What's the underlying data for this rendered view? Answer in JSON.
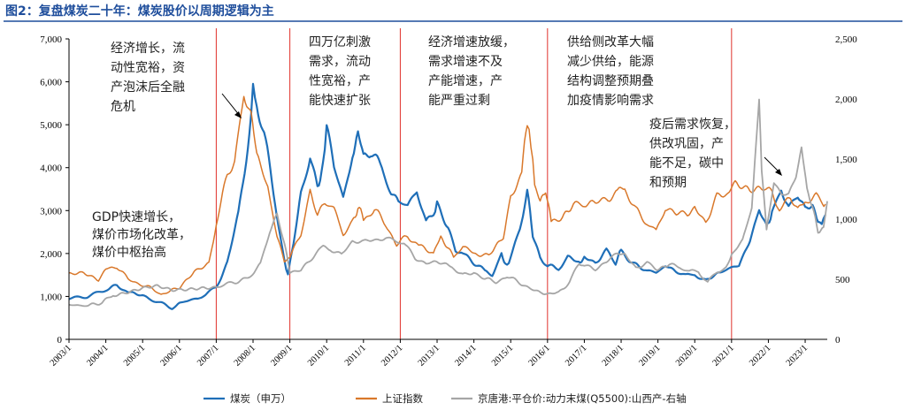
{
  "chart_data": {
    "type": "line",
    "title": "图2：复盘煤炭二十年：煤炭股价以周期逻辑为主",
    "x_categories": [
      "2003/1",
      "2004/1",
      "2005/1",
      "2006/1",
      "2007/1",
      "2008/1",
      "2009/1",
      "2010/1",
      "2011/1",
      "2012/1",
      "2013/1",
      "2014/1",
      "2015/1",
      "2016/1",
      "2017/1",
      "2018/1",
      "2019/1",
      "2020/1",
      "2021/1",
      "2022/1",
      "2023/1"
    ],
    "y_left": {
      "ticks": [
        "0",
        "1,000",
        "2,000",
        "3,000",
        "4,000",
        "5,000",
        "6,000",
        "7,000"
      ],
      "ylim": [
        0,
        7000
      ]
    },
    "y_right": {
      "ticks": [
        "0",
        "500",
        "1,000",
        "1,500",
        "2,000",
        "2,500"
      ],
      "ylim": [
        0,
        2500
      ]
    },
    "series": [
      {
        "name": "煤炭（申万）",
        "axis": "left",
        "color": "#1f6fb8",
        "points": [
          [
            2003.0,
            950
          ],
          [
            2003.5,
            1000
          ],
          [
            2004.0,
            1150
          ],
          [
            2004.3,
            1250
          ],
          [
            2004.6,
            1100
          ],
          [
            2005.0,
            1000
          ],
          [
            2005.5,
            850
          ],
          [
            2005.8,
            720
          ],
          [
            2006.0,
            850
          ],
          [
            2006.5,
            950
          ],
          [
            2007.0,
            1200
          ],
          [
            2007.3,
            1800
          ],
          [
            2007.6,
            2900
          ],
          [
            2007.9,
            4800
          ],
          [
            2008.0,
            6000
          ],
          [
            2008.1,
            5400
          ],
          [
            2008.3,
            4800
          ],
          [
            2008.6,
            3200
          ],
          [
            2008.85,
            1800
          ],
          [
            2008.95,
            1500
          ],
          [
            2009.1,
            2300
          ],
          [
            2009.3,
            3400
          ],
          [
            2009.55,
            4300
          ],
          [
            2009.75,
            3600
          ],
          [
            2009.9,
            4000
          ],
          [
            2010.0,
            4900
          ],
          [
            2010.2,
            4000
          ],
          [
            2010.45,
            3300
          ],
          [
            2010.7,
            4300
          ],
          [
            2010.85,
            4800
          ],
          [
            2011.0,
            4300
          ],
          [
            2011.2,
            4400
          ],
          [
            2011.5,
            4000
          ],
          [
            2011.75,
            3400
          ],
          [
            2011.95,
            3200
          ],
          [
            2012.2,
            3100
          ],
          [
            2012.45,
            3500
          ],
          [
            2012.7,
            2700
          ],
          [
            2012.9,
            2900
          ],
          [
            2013.0,
            3200
          ],
          [
            2013.3,
            2600
          ],
          [
            2013.5,
            2100
          ],
          [
            2013.7,
            2000
          ],
          [
            2014.0,
            1800
          ],
          [
            2014.3,
            1600
          ],
          [
            2014.5,
            1500
          ],
          [
            2014.75,
            2000
          ],
          [
            2014.9,
            1700
          ],
          [
            2015.0,
            1900
          ],
          [
            2015.25,
            2600
          ],
          [
            2015.45,
            3500
          ],
          [
            2015.6,
            2400
          ],
          [
            2015.8,
            1900
          ],
          [
            2016.0,
            1700
          ],
          [
            2016.3,
            1650
          ],
          [
            2016.55,
            1900
          ],
          [
            2016.85,
            1800
          ],
          [
            2017.0,
            1900
          ],
          [
            2017.3,
            1800
          ],
          [
            2017.6,
            2050
          ],
          [
            2017.85,
            1800
          ],
          [
            2018.0,
            2050
          ],
          [
            2018.3,
            1800
          ],
          [
            2018.7,
            1600
          ],
          [
            2018.95,
            1550
          ],
          [
            2019.2,
            1700
          ],
          [
            2019.5,
            1600
          ],
          [
            2019.75,
            1500
          ],
          [
            2020.0,
            1500
          ],
          [
            2020.3,
            1350
          ],
          [
            2020.7,
            1550
          ],
          [
            2020.95,
            1650
          ],
          [
            2021.2,
            1750
          ],
          [
            2021.5,
            2300
          ],
          [
            2021.75,
            3000
          ],
          [
            2021.95,
            2600
          ],
          [
            2022.1,
            3000
          ],
          [
            2022.35,
            3500
          ],
          [
            2022.55,
            3100
          ],
          [
            2022.8,
            3300
          ],
          [
            2023.0,
            3000
          ],
          [
            2023.2,
            3100
          ],
          [
            2023.35,
            2800
          ],
          [
            2023.45,
            2700
          ],
          [
            2023.55,
            2900
          ]
        ]
      },
      {
        "name": "上证指数",
        "axis": "left",
        "color": "#d9782b",
        "points": [
          [
            2003.0,
            1500
          ],
          [
            2003.4,
            1550
          ],
          [
            2003.8,
            1400
          ],
          [
            2004.0,
            1650
          ],
          [
            2004.3,
            1700
          ],
          [
            2004.6,
            1400
          ],
          [
            2004.9,
            1300
          ],
          [
            2005.2,
            1200
          ],
          [
            2005.5,
            1050
          ],
          [
            2005.8,
            1150
          ],
          [
            2006.0,
            1200
          ],
          [
            2006.4,
            1600
          ],
          [
            2006.8,
            1800
          ],
          [
            2007.0,
            2700
          ],
          [
            2007.3,
            3800
          ],
          [
            2007.5,
            4100
          ],
          [
            2007.75,
            5800
          ],
          [
            2007.95,
            5300
          ],
          [
            2008.1,
            4300
          ],
          [
            2008.4,
            3500
          ],
          [
            2008.65,
            2400
          ],
          [
            2008.85,
            1800
          ],
          [
            2009.0,
            1900
          ],
          [
            2009.3,
            2500
          ],
          [
            2009.55,
            3400
          ],
          [
            2009.75,
            2900
          ],
          [
            2009.95,
            3200
          ],
          [
            2010.2,
            3000
          ],
          [
            2010.45,
            2500
          ],
          [
            2010.7,
            2700
          ],
          [
            2010.85,
            3100
          ],
          [
            2011.0,
            2800
          ],
          [
            2011.3,
            3000
          ],
          [
            2011.6,
            2700
          ],
          [
            2011.9,
            2200
          ],
          [
            2012.2,
            2400
          ],
          [
            2012.5,
            2200
          ],
          [
            2012.9,
            1950
          ],
          [
            2013.1,
            2400
          ],
          [
            2013.45,
            1900
          ],
          [
            2013.7,
            2200
          ],
          [
            2014.0,
            2000
          ],
          [
            2014.4,
            2000
          ],
          [
            2014.8,
            2400
          ],
          [
            2015.0,
            3300
          ],
          [
            2015.3,
            3900
          ],
          [
            2015.45,
            5100
          ],
          [
            2015.55,
            4500
          ],
          [
            2015.65,
            3600
          ],
          [
            2015.8,
            3200
          ],
          [
            2015.95,
            3500
          ],
          [
            2016.1,
            2700
          ],
          [
            2016.4,
            2900
          ],
          [
            2016.75,
            3100
          ],
          [
            2017.0,
            3200
          ],
          [
            2017.3,
            3150
          ],
          [
            2017.6,
            3300
          ],
          [
            2017.9,
            3400
          ],
          [
            2018.1,
            3500
          ],
          [
            2018.4,
            3000
          ],
          [
            2018.7,
            2700
          ],
          [
            2018.95,
            2500
          ],
          [
            2019.2,
            3100
          ],
          [
            2019.5,
            2900
          ],
          [
            2019.8,
            2950
          ],
          [
            2020.0,
            3050
          ],
          [
            2020.3,
            2750
          ],
          [
            2020.6,
            3300
          ],
          [
            2020.9,
            3400
          ],
          [
            2021.1,
            3600
          ],
          [
            2021.5,
            3500
          ],
          [
            2021.9,
            3600
          ],
          [
            2022.1,
            3500
          ],
          [
            2022.3,
            3000
          ],
          [
            2022.6,
            3300
          ],
          [
            2022.8,
            3000
          ],
          [
            2023.0,
            3200
          ],
          [
            2023.3,
            3300
          ],
          [
            2023.55,
            3150
          ]
        ]
      },
      {
        "name": "京唐港:平仓价:动力末煤(Q5500):山西产-右轴",
        "axis": "right",
        "color": "#a6a6a6",
        "points": [
          [
            2003.0,
            290
          ],
          [
            2003.5,
            280
          ],
          [
            2003.9,
            300
          ],
          [
            2004.2,
            370
          ],
          [
            2004.6,
            400
          ],
          [
            2005.0,
            430
          ],
          [
            2005.4,
            440
          ],
          [
            2005.8,
            400
          ],
          [
            2006.2,
            410
          ],
          [
            2006.6,
            430
          ],
          [
            2007.0,
            440
          ],
          [
            2007.5,
            470
          ],
          [
            2007.9,
            520
          ],
          [
            2008.2,
            620
          ],
          [
            2008.45,
            900
          ],
          [
            2008.65,
            1050
          ],
          [
            2008.85,
            800
          ],
          [
            2009.0,
            560
          ],
          [
            2009.3,
            570
          ],
          [
            2009.6,
            680
          ],
          [
            2009.9,
            780
          ],
          [
            2010.1,
            750
          ],
          [
            2010.4,
            700
          ],
          [
            2010.7,
            820
          ],
          [
            2011.0,
            810
          ],
          [
            2011.3,
            830
          ],
          [
            2011.6,
            840
          ],
          [
            2011.85,
            820
          ],
          [
            2012.1,
            800
          ],
          [
            2012.4,
            680
          ],
          [
            2012.7,
            630
          ],
          [
            2013.0,
            640
          ],
          [
            2013.4,
            600
          ],
          [
            2013.7,
            530
          ],
          [
            2014.0,
            560
          ],
          [
            2014.3,
            500
          ],
          [
            2014.6,
            480
          ],
          [
            2014.9,
            520
          ],
          [
            2015.2,
            480
          ],
          [
            2015.5,
            430
          ],
          [
            2015.8,
            380
          ],
          [
            2016.0,
            370
          ],
          [
            2016.3,
            390
          ],
          [
            2016.6,
            480
          ],
          [
            2016.85,
            620
          ],
          [
            2017.0,
            610
          ],
          [
            2017.3,
            590
          ],
          [
            2017.6,
            640
          ],
          [
            2017.9,
            720
          ],
          [
            2018.1,
            700
          ],
          [
            2018.4,
            600
          ],
          [
            2018.7,
            630
          ],
          [
            2018.95,
            590
          ],
          [
            2019.3,
            620
          ],
          [
            2019.6,
            600
          ],
          [
            2019.85,
            560
          ],
          [
            2020.1,
            570
          ],
          [
            2020.35,
            470
          ],
          [
            2020.6,
            560
          ],
          [
            2020.85,
            600
          ],
          [
            2021.0,
            700
          ],
          [
            2021.3,
            820
          ],
          [
            2021.55,
            1100
          ],
          [
            2021.75,
            2000
          ],
          [
            2021.82,
            1400
          ],
          [
            2021.95,
            900
          ],
          [
            2022.15,
            1300
          ],
          [
            2022.35,
            1200
          ],
          [
            2022.55,
            1200
          ],
          [
            2022.75,
            1350
          ],
          [
            2022.9,
            1600
          ],
          [
            2023.05,
            1250
          ],
          [
            2023.2,
            1100
          ],
          [
            2023.35,
            900
          ],
          [
            2023.5,
            920
          ],
          [
            2023.6,
            1150
          ]
        ]
      }
    ],
    "phase_lines_x": [
      2007.0,
      2009.0,
      2012.0,
      2016.0,
      2021.0
    ],
    "annotations": [
      {
        "text": [
          "经济增长，流",
          "动性宽裕，资",
          "产泡沫后全融",
          "危机"
        ]
      },
      {
        "text": [
          "四万亿刺激",
          "需求，流动",
          "性宽裕，产",
          "能快速扩张"
        ]
      },
      {
        "text": [
          "经济增速放缓，",
          "需求增速不及",
          "产能增速，产",
          "能严重过剩"
        ]
      },
      {
        "text": [
          "供给侧改革大幅",
          "减少供给，能源",
          "结构调整预期叠",
          "加疫情影响需求"
        ]
      },
      {
        "text": [
          "疫后需求恢复，",
          "供改巩固，产",
          "能不足，碳中",
          "和预期"
        ]
      },
      {
        "text": [
          "GDP快速增长，",
          "煤价市场化改革，",
          "煤价中枢抬高"
        ]
      }
    ],
    "legend": [
      "煤炭（申万）",
      "上证指数",
      "京唐港:平仓价:动力末煤(Q5500):山西产-右轴"
    ],
    "grid": false,
    "legend_position": "bottom"
  }
}
